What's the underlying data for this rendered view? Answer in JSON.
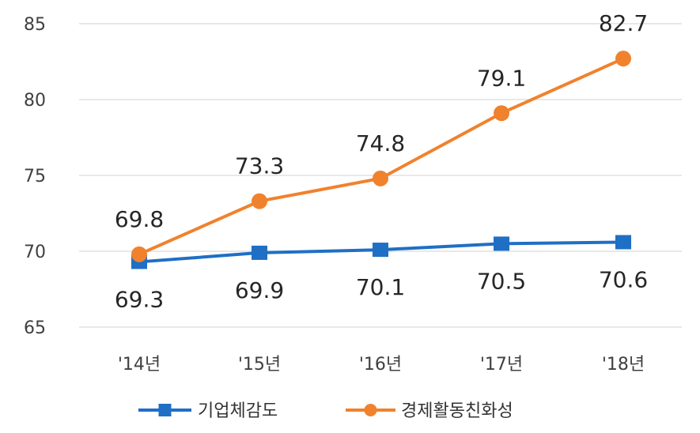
{
  "chart_data": {
    "type": "line",
    "categories": [
      "'14년",
      "'15년",
      "'16년",
      "'17년",
      "'18년"
    ],
    "ylim": [
      65,
      85
    ],
    "yticks": [
      65,
      70,
      75,
      80,
      85
    ],
    "grid": true,
    "legend_position": "bottom",
    "series": [
      {
        "name": "기업체감도",
        "values": [
          69.3,
          69.9,
          70.1,
          70.5,
          70.6
        ],
        "color": "#1f6fc5",
        "marker": "square",
        "label_position": "below"
      },
      {
        "name": "경제활동친화성",
        "values": [
          69.8,
          73.3,
          74.8,
          79.1,
          82.7
        ],
        "color": "#f0822d",
        "marker": "circle",
        "label_position": "above"
      }
    ]
  }
}
